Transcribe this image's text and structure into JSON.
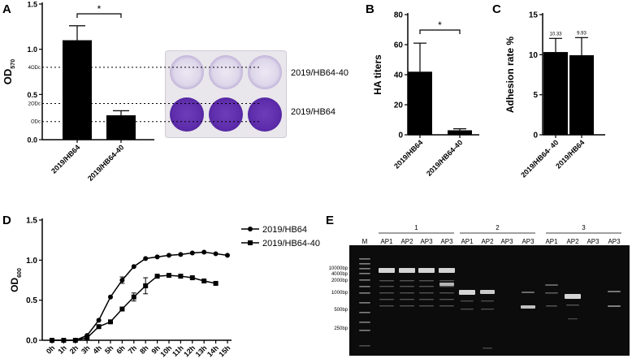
{
  "panels": {
    "A": "A",
    "B": "B",
    "C": "C",
    "D": "D",
    "E": "E"
  },
  "colors": {
    "bar": "#000000",
    "well_light": "#ddd6ea",
    "well_dark": "#5d2cab",
    "gel_bg": "#0c0c0c",
    "band": "#d8d8d8"
  },
  "chart_data": [
    {
      "id": "A",
      "type": "bar",
      "categories": [
        "2019/HB64",
        "2019/HB64-40"
      ],
      "values": [
        1.1,
        0.27
      ],
      "errors": [
        0.16,
        0.05
      ],
      "ylabel": "OD",
      "ylabel_sub": "570",
      "ylim": [
        0,
        1.5
      ],
      "yticks": [
        "0.0",
        "0.5",
        "1.0",
        "1.5"
      ],
      "yticks_values": [
        0,
        0.5,
        1,
        1.5
      ],
      "reference_lines": [
        {
          "label": "ODc",
          "value": 0.2
        },
        {
          "label": "2ODc",
          "value": 0.4
        },
        {
          "label": "4ODc",
          "value": 0.8
        }
      ],
      "significance": "*",
      "image_labels": [
        "2019/HB64-40",
        "2019/HB64"
      ]
    },
    {
      "id": "B",
      "type": "bar",
      "categories": [
        "2019/HB64",
        "2019/HB64-40"
      ],
      "values": [
        42,
        3
      ],
      "errors": [
        19,
        1
      ],
      "ylabel": "HA titers",
      "ylim": [
        0,
        80
      ],
      "yticks": [
        "0",
        "20",
        "40",
        "60",
        "80"
      ],
      "yticks_values": [
        0,
        20,
        40,
        60,
        80
      ],
      "significance": "*"
    },
    {
      "id": "C",
      "type": "bar",
      "categories": [
        "2019/HB64- 40",
        "2019/HB64"
      ],
      "values": [
        10.33,
        9.93
      ],
      "errors": [
        1.7,
        2.2
      ],
      "data_labels": [
        "10.33",
        "9.93"
      ],
      "ylabel": "Adhesion rate %",
      "ylim": [
        0,
        15
      ],
      "yticks": [
        "0",
        "5",
        "10",
        "15"
      ],
      "yticks_values": [
        0,
        5,
        10,
        15
      ]
    },
    {
      "id": "D",
      "type": "line",
      "x": [
        "0h",
        "1h",
        "2h",
        "3h",
        "4h",
        "5h",
        "6h",
        "7h",
        "8h",
        "9h",
        "10h",
        "11h",
        "12h",
        "13h",
        "14h",
        "15h"
      ],
      "ylabel": "OD",
      "ylabel_sub": "600",
      "ylim": [
        0,
        1.5
      ],
      "yticks": [
        "0.0",
        "0.5",
        "1.0",
        "1.5"
      ],
      "yticks_values": [
        0,
        0.5,
        1,
        1.5
      ],
      "legend_position": "top-right",
      "series": [
        {
          "name": "2019/HB64",
          "marker": "circle",
          "values": [
            0,
            0,
            0,
            0.06,
            0.25,
            0.54,
            0.75,
            0.92,
            1.02,
            1.04,
            1.06,
            1.07,
            1.09,
            1.1,
            1.08,
            1.06
          ],
          "errors": [
            0,
            0,
            0,
            0,
            0,
            0,
            0.04,
            0,
            0,
            0,
            0,
            0,
            0,
            0,
            0,
            0
          ]
        },
        {
          "name": "2019/HB64-40",
          "marker": "square",
          "values": [
            0,
            0,
            0,
            0.03,
            0.17,
            0.23,
            0.39,
            0.54,
            0.68,
            0.8,
            0.81,
            0.8,
            0.78,
            0.74,
            0.71,
            null
          ],
          "errors": [
            0,
            0,
            0,
            0,
            0,
            0,
            0,
            0.05,
            0.1,
            0,
            0,
            0,
            0,
            0,
            0,
            0
          ]
        }
      ]
    }
  ],
  "gel": {
    "groups": [
      "1",
      "2",
      "3"
    ],
    "lanes": [
      "M",
      "AP1",
      "AP2",
      "AP3",
      "AP3",
      "AP1",
      "AP2",
      "AP3",
      "AP3",
      "AP1",
      "AP2",
      "AP3",
      "AP3"
    ],
    "markers": [
      "10000bp",
      "4000bp",
      "2000bp",
      "1000bp",
      "500bp",
      "250bp"
    ]
  }
}
